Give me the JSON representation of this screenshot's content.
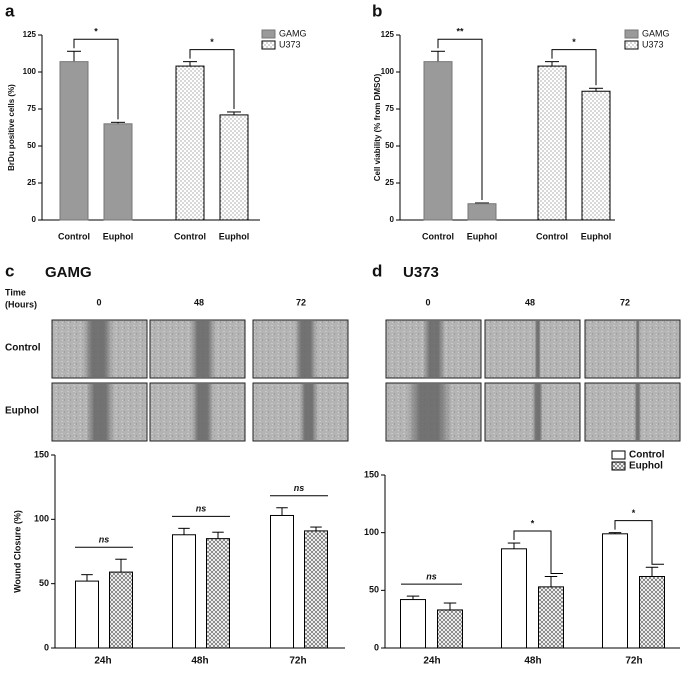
{
  "panel_labels": [
    "a",
    "b",
    "c",
    "d"
  ],
  "image_grids": [
    {
      "title": "GAMG",
      "time_header": [
        "Time",
        "(Hours)"
      ],
      "times": [
        "0",
        "48",
        "72"
      ],
      "rows": [
        "Control",
        "Euphol"
      ]
    },
    {
      "title": "U373",
      "times": [
        "0",
        "48",
        "72"
      ]
    }
  ],
  "chart_data": [
    {
      "type": "bar",
      "y_label": "BrDu positive cells (%)",
      "categories": [
        "Control",
        "Euphol",
        "Control",
        "Euphol"
      ],
      "series": [
        {
          "name": "GAMG",
          "color": "#9a9a9a",
          "values": [
            107,
            65,
            null,
            null
          ],
          "errors": [
            7,
            1,
            null,
            null
          ]
        },
        {
          "name": "U373",
          "color": "#ffffff",
          "pattern": "dots",
          "values": [
            null,
            null,
            104,
            71
          ],
          "errors": [
            null,
            null,
            3,
            2
          ]
        }
      ],
      "ylim": [
        0,
        125
      ],
      "yticks": [
        0,
        25,
        50,
        75,
        100,
        125
      ],
      "grid": false,
      "legend": "upper right",
      "annotations": [
        "*",
        "*"
      ]
    },
    {
      "type": "bar",
      "y_label": "Cell viability (% from DMSO)",
      "categories": [
        "Control",
        "Euphol",
        "Control",
        "Euphol"
      ],
      "series": [
        {
          "name": "GAMG",
          "color": "#9a9a9a",
          "values": [
            107,
            11,
            null,
            null
          ],
          "errors": [
            7,
            0.5,
            null,
            null
          ]
        },
        {
          "name": "U373",
          "color": "#ffffff",
          "pattern": "dots",
          "values": [
            null,
            null,
            104,
            87
          ],
          "errors": [
            null,
            null,
            3,
            2
          ]
        }
      ],
      "ylim": [
        0,
        125
      ],
      "yticks": [
        0,
        25,
        50,
        75,
        100,
        125
      ],
      "grid": false,
      "legend": "upper right",
      "annotations": [
        "**",
        "*"
      ]
    },
    {
      "type": "bar",
      "y_label": "Wound Closure (%)",
      "categories": [
        "24h",
        "48h",
        "72h"
      ],
      "series": [
        {
          "color": "#ffffff",
          "values": [
            52,
            88,
            103
          ],
          "errors": [
            5,
            5,
            6
          ]
        },
        {
          "color": "#ffffff",
          "pattern": "crosshatch",
          "values": [
            59,
            85,
            91
          ],
          "errors": [
            10,
            5,
            3
          ]
        }
      ],
      "ylim": [
        0,
        150
      ],
      "yticks": [
        0,
        50,
        100,
        150
      ],
      "grid": false,
      "annotations": [
        "ns",
        "ns",
        "ns"
      ]
    },
    {
      "type": "bar",
      "categories": [
        "24h",
        "48h",
        "72h"
      ],
      "series": [
        {
          "name": "Control",
          "color": "#ffffff",
          "values": [
            42,
            86,
            99
          ],
          "errors": [
            3,
            5,
            1
          ]
        },
        {
          "name": "Euphol",
          "color": "#ffffff",
          "pattern": "crosshatch",
          "values": [
            33,
            53,
            62
          ],
          "errors": [
            6,
            9,
            8
          ]
        }
      ],
      "ylim": [
        0,
        150
      ],
      "yticks": [
        0,
        50,
        100,
        150
      ],
      "grid": false,
      "legend": "upper right",
      "annotations": [
        "ns",
        "*",
        "*"
      ]
    }
  ]
}
